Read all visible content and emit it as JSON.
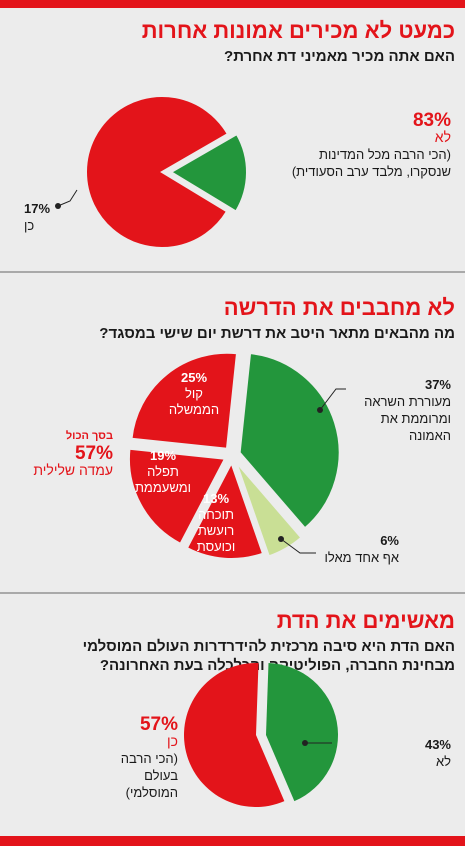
{
  "colors": {
    "red": "#e3141a",
    "green": "#23963c",
    "light_green": "#c9df95",
    "bar": "#e3141a"
  },
  "sections": [
    {
      "title": "כמעט לא מכירים אמונות אחרות",
      "question": "האם אתה מכיר מאמיני דת אחרת?"
    },
    {
      "title": "לא מחבבים את הדרשה",
      "question": "מה מהבאים מתאר היטב את דרשת יום שישי במסגד?"
    },
    {
      "title": "מאשימים את הדת",
      "question_line1": "האם הדת היא סיבה מרכזית להידרדרות העולם המוסלמי",
      "question_line2": "מבחינת החברה, הפוליטיקה והכלכלה בעת האחרונה?"
    }
  ],
  "labels": {
    "c1_no_pct": "83%",
    "c1_no": "לא",
    "c1_no_note1": "(הכי הרבה מכל המדינות",
    "c1_no_note2": "שנסקרו, מלבד ערב הסעודית)",
    "c1_yes_pct": "17%",
    "c1_yes": "כן",
    "c2_inspire_pct": "37%",
    "c2_inspire_1": "מעוררת השראה",
    "c2_inspire_2": "ומרוממת את",
    "c2_inspire_3": "האמונה",
    "c2_none_pct": "6%",
    "c2_none": "אף אחד מאלו",
    "c2_gov_pct": "25%",
    "c2_gov_1": "קול",
    "c2_gov_2": "הממשלה",
    "c2_boring_pct": "19%",
    "c2_boring_1": "תפלה",
    "c2_boring_2": "ומשעממת",
    "c2_angry_pct": "13%",
    "c2_angry_1": "תוכחה",
    "c2_angry_2": "רועשת",
    "c2_angry_3": "וכועסת",
    "c2_total_label": "בסך הכול",
    "c2_total_pct": "57%",
    "c2_total_text": "עמדה שלילית",
    "c3_yes_pct": "57%",
    "c3_yes": "כן",
    "c3_yes_note1": "(הכי הרבה בעולם",
    "c3_yes_note2": "המוסלמי)",
    "c3_no_pct": "43%",
    "c3_no": "לא"
  },
  "chart_data": [
    {
      "type": "pie",
      "categories": [
        "לא",
        "כן"
      ],
      "values": [
        83,
        17
      ]
    },
    {
      "type": "pie",
      "categories": [
        "מעוררת השראה ומרוממת את האמונה",
        "אף אחד מאלו",
        "תוכחה רועשת וכועסת",
        "תפלה ומשעממת",
        "קול הממשלה"
      ],
      "values": [
        37,
        6,
        13,
        19,
        25
      ],
      "annotations": [
        "בסך הכול 57% עמדה שלילית"
      ]
    },
    {
      "type": "pie",
      "categories": [
        "כן",
        "לא"
      ],
      "values": [
        57,
        43
      ]
    }
  ]
}
